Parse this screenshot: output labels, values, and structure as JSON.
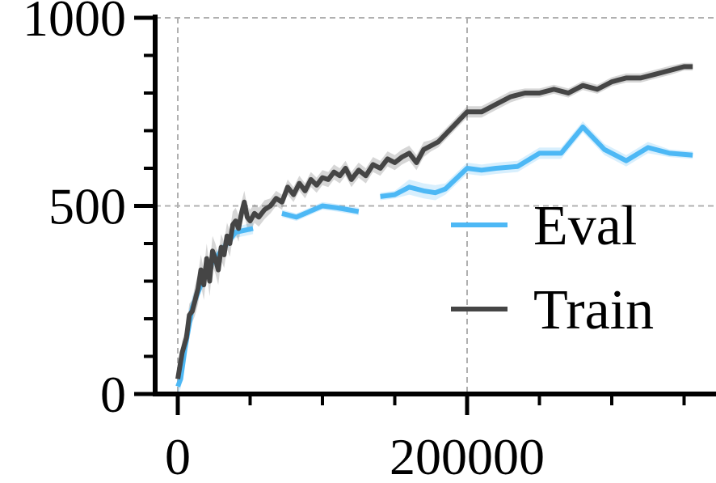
{
  "chart_data": {
    "type": "line",
    "xlim": [
      -15000,
      370000
    ],
    "ylim": [
      0,
      1000
    ],
    "x_ticks": [
      0,
      200000
    ],
    "x_tick_labels": [
      "0",
      "200000"
    ],
    "x_minor_ticks": [
      50000,
      100000,
      150000,
      250000,
      300000,
      350000
    ],
    "y_ticks": [
      0,
      500,
      1000
    ],
    "y_tick_labels": [
      "0",
      "500",
      "1000"
    ],
    "y_minor_ticks": [
      100,
      200,
      300,
      400,
      600,
      700,
      800,
      900
    ],
    "grid": true,
    "legend_position": "center-right",
    "series": [
      {
        "name": "Eval",
        "color": "#4db8f5",
        "x": [
          0,
          2000,
          5000,
          10000,
          15000,
          20000,
          30000,
          40000,
          52000,
          60000,
          72000,
          82000,
          100000,
          110000,
          125000,
          128000,
          140000,
          150000,
          160000,
          170000,
          178000,
          185000,
          200000,
          210000,
          220000,
          235000,
          250000,
          265000,
          280000,
          295000,
          310000,
          325000,
          340000,
          356000
        ],
        "y": [
          20,
          40,
          120,
          230,
          280,
          330,
          380,
          430,
          440,
          null,
          480,
          470,
          500,
          495,
          485,
          null,
          525,
          530,
          550,
          540,
          535,
          545,
          600,
          595,
          600,
          605,
          640,
          640,
          710,
          650,
          620,
          655,
          640,
          635
        ],
        "band": [
          25,
          25,
          30,
          30,
          20,
          20,
          15,
          15,
          15,
          null,
          10,
          10,
          10,
          10,
          10,
          null,
          10,
          10,
          20,
          20,
          20,
          15,
          15,
          15,
          15,
          15,
          15,
          15,
          15,
          15,
          15,
          15,
          10,
          10
        ]
      },
      {
        "name": "Train",
        "color": "#454545",
        "x": [
          0,
          3000,
          6000,
          8000,
          10000,
          12000,
          14000,
          16000,
          18000,
          20000,
          22000,
          24000,
          26000,
          28000,
          30000,
          32000,
          34000,
          36000,
          38000,
          40000,
          42000,
          44000,
          46000,
          48000,
          50000,
          53000,
          56000,
          60000,
          64000,
          68000,
          72000,
          76000,
          80000,
          84000,
          88000,
          92000,
          96000,
          100000,
          104000,
          108000,
          112000,
          116000,
          120000,
          125000,
          130000,
          135000,
          140000,
          145000,
          150000,
          155000,
          160000,
          165000,
          170000,
          175000,
          180000,
          190000,
          200000,
          210000,
          220000,
          230000,
          240000,
          250000,
          260000,
          270000,
          280000,
          290000,
          300000,
          310000,
          320000,
          330000,
          340000,
          350000,
          356000
        ],
        "y": [
          40,
          110,
          150,
          210,
          220,
          250,
          280,
          330,
          290,
          360,
          300,
          380,
          360,
          330,
          390,
          370,
          420,
          400,
          450,
          460,
          440,
          480,
          510,
          470,
          460,
          480,
          470,
          490,
          500,
          520,
          510,
          550,
          530,
          560,
          540,
          570,
          555,
          575,
          570,
          590,
          580,
          600,
          570,
          595,
          580,
          610,
          600,
          625,
          615,
          630,
          640,
          615,
          650,
          660,
          670,
          710,
          750,
          750,
          770,
          790,
          800,
          800,
          810,
          800,
          820,
          810,
          830,
          840,
          840,
          850,
          860,
          870,
          870
        ],
        "band": [
          20,
          30,
          30,
          30,
          30,
          40,
          40,
          40,
          40,
          40,
          40,
          40,
          40,
          40,
          35,
          35,
          35,
          35,
          35,
          35,
          35,
          30,
          30,
          30,
          30,
          25,
          25,
          25,
          20,
          20,
          20,
          20,
          20,
          20,
          20,
          20,
          20,
          20,
          20,
          20,
          20,
          20,
          20,
          20,
          20,
          20,
          20,
          20,
          20,
          20,
          20,
          20,
          20,
          15,
          15,
          15,
          15,
          15,
          15,
          15,
          12,
          12,
          12,
          12,
          12,
          12,
          12,
          12,
          12,
          12,
          12,
          10,
          10
        ]
      }
    ]
  }
}
